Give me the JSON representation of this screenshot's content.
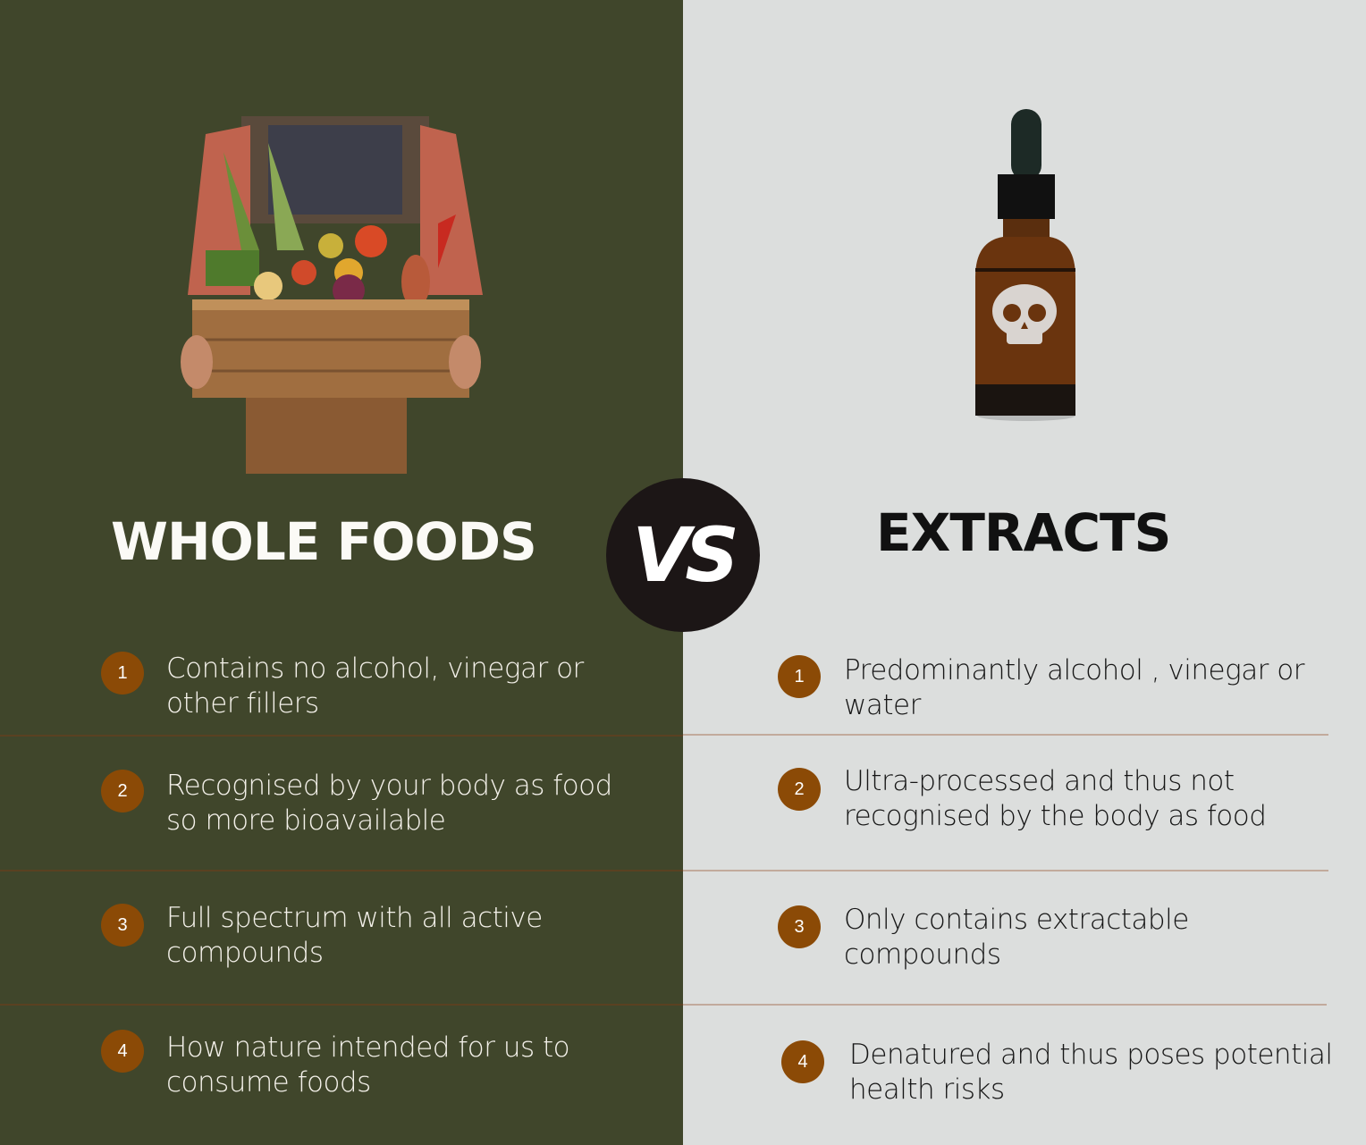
{
  "left": {
    "title": "WHOLE FOODS",
    "image": "person-holding-vegetable-crate",
    "background_color": "#40462b",
    "items": [
      {
        "number": "1",
        "text": "Contains no alcohol, vinegar or other fillers"
      },
      {
        "number": "2",
        "text": "Recognised by your body as food so more bioavailable"
      },
      {
        "number": "3",
        "text": "Full spectrum with all active compounds"
      },
      {
        "number": "4",
        "text": "How nature intended for us to consume foods"
      }
    ]
  },
  "center": {
    "label": "VS"
  },
  "right": {
    "title": "EXTRACTS",
    "image": "dropper-bottle-with-skull",
    "background_color": "#dcdedd",
    "items": [
      {
        "number": "1",
        "text": "Predominantly alcohol , vinegar or water"
      },
      {
        "number": "2",
        "text": "Ultra-processed and thus not recognised by the body as food"
      },
      {
        "number": "3",
        "text": "Only contains extractable compounds"
      },
      {
        "number": "4",
        "text": "Denatured and thus poses potential health risks"
      }
    ]
  },
  "colors": {
    "badge": "#8b4a06",
    "vs_circle": "#1c1616"
  }
}
